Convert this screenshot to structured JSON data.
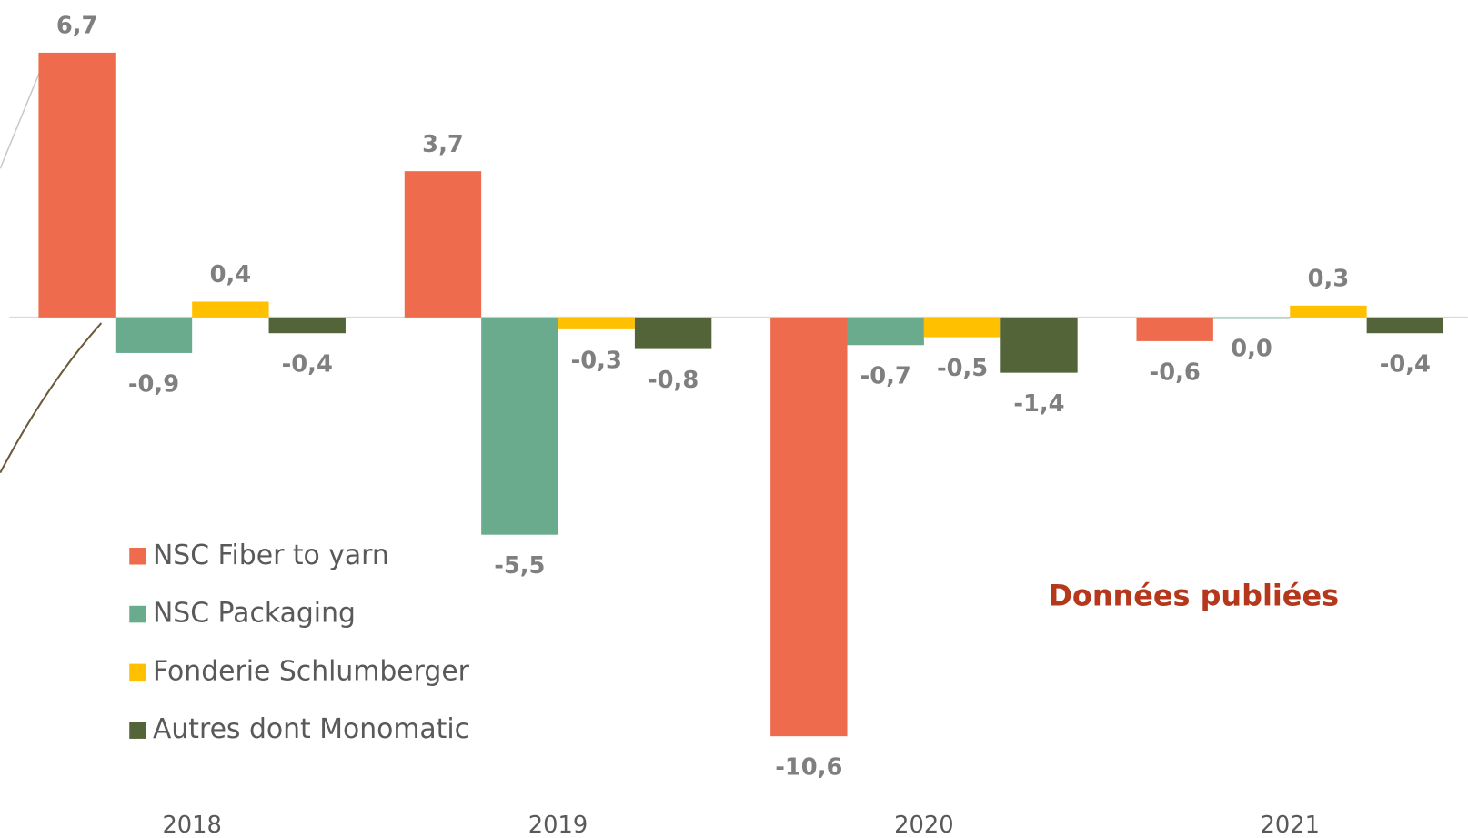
{
  "chart_data": {
    "type": "bar",
    "annotation": "Données publiées",
    "categories": [
      "2018",
      "2019",
      "2020",
      "2021"
    ],
    "legend": "left",
    "series": [
      {
        "name": "NSC Fiber to yarn",
        "color": "#ee6c4d",
        "values": [
          6.7,
          3.7,
          -10.6,
          -0.6
        ],
        "value_labels": [
          "6,7",
          "3,7",
          "-10,6",
          "-0,6"
        ]
      },
      {
        "name": "NSC Packaging",
        "color": "#6aab8e",
        "values": [
          -0.9,
          -5.5,
          -0.7,
          0.0
        ],
        "value_labels": [
          "-0,9",
          "-5,5",
          "-0,7",
          "0,0"
        ]
      },
      {
        "name": "Fonderie Schlumberger",
        "color": "#ffc000",
        "values": [
          0.4,
          -0.3,
          -0.5,
          0.3
        ],
        "value_labels": [
          "0,4",
          "-0,3",
          "-0,5",
          "0,3"
        ]
      },
      {
        "name": "Autres dont Monomatic",
        "color": "#536438",
        "values": [
          -0.4,
          -0.8,
          -1.4,
          -0.4
        ],
        "value_labels": [
          "-0,4",
          "-0,8",
          "-1,4",
          "-0,4"
        ]
      }
    ]
  }
}
